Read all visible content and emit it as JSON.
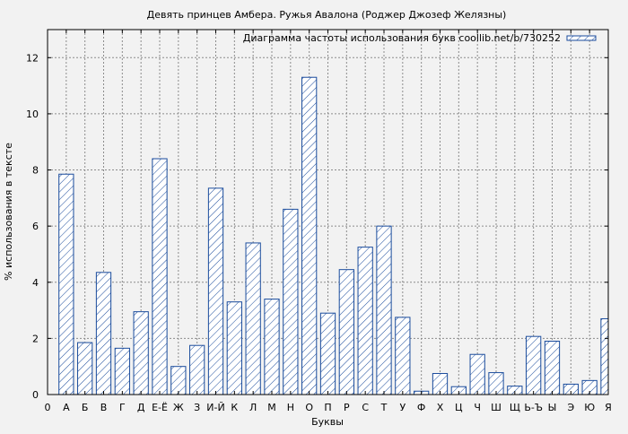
{
  "chart_data": {
    "type": "bar",
    "title": "Девять принцев Амбера. Ружья Авалона (Роджер Джозеф Желязны)",
    "xlabel": "Буквы",
    "ylabel": "% использования в тексте",
    "legend": {
      "label": "Диаграмма частоты использования букв coollib.net/b/730252",
      "placement": "top-right"
    },
    "ylim": [
      0,
      13
    ],
    "yticks": [
      0,
      2,
      4,
      6,
      8,
      10,
      12
    ],
    "xlim": [
      0,
      30
    ],
    "xticks": [
      "0",
      "А",
      "Б",
      "В",
      "Г",
      "Д",
      "Е-Ё",
      "Ж",
      "З",
      "И-Й",
      "К",
      "Л",
      "М",
      "Н",
      "О",
      "П",
      "Р",
      "С",
      "Т",
      "У",
      "Ф",
      "Х",
      "Ц",
      "Ч",
      "Ш",
      "Щ",
      "Ь-Ъ",
      "Ы",
      "Э",
      "Ю",
      "Я"
    ],
    "grid": true,
    "categories": [
      "А",
      "Б",
      "В",
      "Г",
      "Д",
      "Е-Ё",
      "Ж",
      "З",
      "И-Й",
      "К",
      "Л",
      "М",
      "Н",
      "О",
      "П",
      "Р",
      "С",
      "Т",
      "У",
      "Ф",
      "Х",
      "Ц",
      "Ч",
      "Ш",
      "Щ",
      "Ь-Ъ",
      "Ы",
      "Э",
      "Ю",
      "Я"
    ],
    "values": [
      7.85,
      1.85,
      4.35,
      1.65,
      2.95,
      8.4,
      1.0,
      1.75,
      7.35,
      3.3,
      5.4,
      3.4,
      6.6,
      11.3,
      2.9,
      4.45,
      5.25,
      6.0,
      2.75,
      0.12,
      0.75,
      0.28,
      1.43,
      0.78,
      0.3,
      2.07,
      1.9,
      0.37,
      0.5,
      2.7
    ],
    "colors": {
      "bar_stroke": "#1a4b9c",
      "bar_hatch": "#1a4b9c",
      "bar_fill": "#ffffff",
      "grid": "#8c8c8c",
      "plot_bg": "#f2f2f2"
    }
  }
}
